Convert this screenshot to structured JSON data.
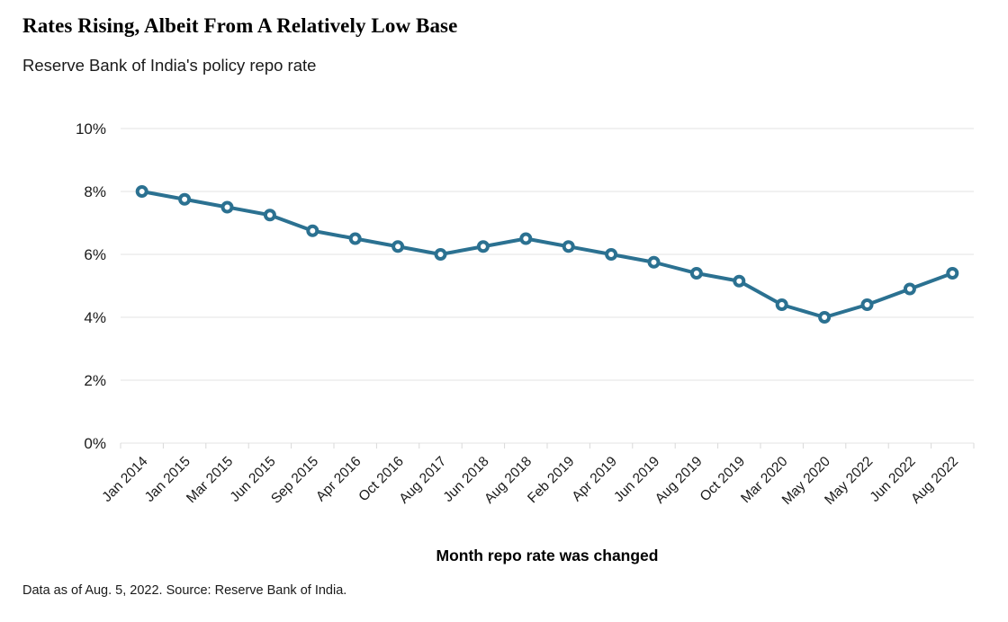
{
  "header": {
    "title": "Rates Rising, Albeit From A Relatively Low Base",
    "subtitle": "Reserve Bank of India's policy repo rate"
  },
  "chart_data": {
    "type": "line",
    "title": "Rates Rising, Albeit From A Relatively Low Base",
    "subtitle": "Reserve Bank of India's policy repo rate",
    "xlabel": "Month repo rate was changed",
    "ylabel": "",
    "unit": "%",
    "categories": [
      "Jan 2014",
      "Jan 2015",
      "Mar 2015",
      "Jun 2015",
      "Sep 2015",
      "Apr 2016",
      "Oct 2016",
      "Aug 2017",
      "Jun 2018",
      "Aug 2018",
      "Feb 2019",
      "Apr 2019",
      "Jun 2019",
      "Aug 2019",
      "Oct 2019",
      "Mar 2020",
      "May 2020",
      "May 2022",
      "Jun 2022",
      "Aug 2022"
    ],
    "values": [
      8.0,
      7.75,
      7.5,
      7.25,
      6.75,
      6.5,
      6.25,
      6.0,
      6.25,
      6.5,
      6.25,
      6.0,
      5.75,
      5.4,
      5.15,
      4.4,
      4.0,
      4.4,
      4.9,
      5.4
    ],
    "ylim": [
      0,
      10
    ],
    "yticks": [
      0,
      2,
      4,
      6,
      8,
      10
    ],
    "ytick_labels": [
      "0%",
      "2%",
      "4%",
      "6%",
      "8%",
      "10%"
    ],
    "grid": "horizontal",
    "legend": "none",
    "line_color": "#2b7191",
    "marker": "open-circle",
    "marker_fill": "#ffffff",
    "gridline_color": "#e3e3e3",
    "tick_color": "#d9d9d9",
    "axis_label_color": "#1a1a1a"
  },
  "footer": {
    "note": "Data as of Aug. 5, 2022. Source: Reserve Bank of India."
  }
}
